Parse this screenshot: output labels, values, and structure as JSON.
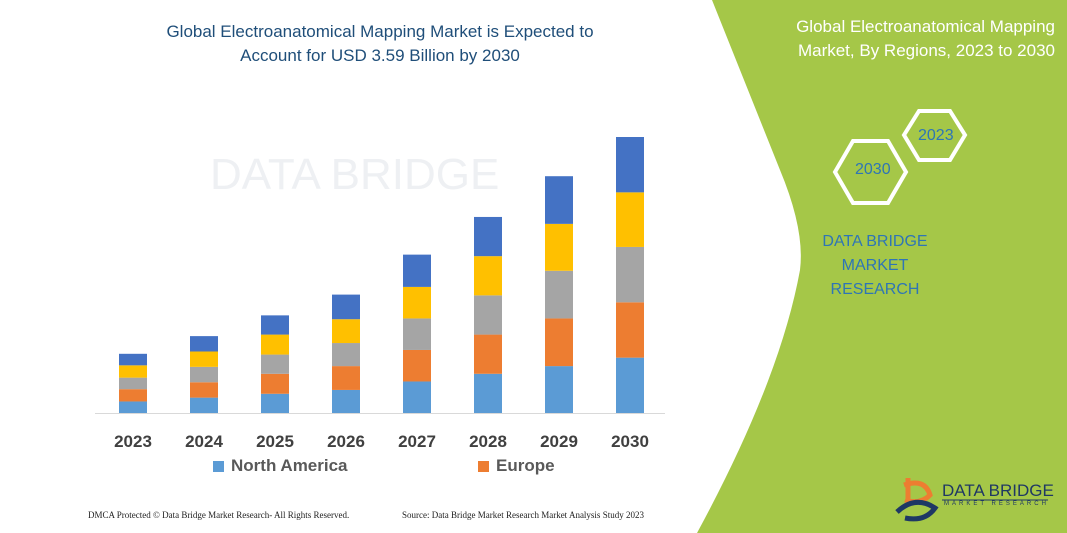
{
  "chart_data": {
    "type": "bar",
    "stacked": true,
    "title": "Global Electroanatomical Mapping Market is Expected to Account for USD 3.59 Billion by 2030",
    "categories": [
      "2023",
      "2024",
      "2025",
      "2026",
      "2027",
      "2028",
      "2029",
      "2030"
    ],
    "series": [
      {
        "name": "North America",
        "color": "#5B9BD5",
        "values": [
          0.15,
          0.2,
          0.25,
          0.3,
          0.41,
          0.51,
          0.61,
          0.72
        ]
      },
      {
        "name": "Europe",
        "color": "#ED7D31",
        "values": [
          0.16,
          0.2,
          0.26,
          0.31,
          0.41,
          0.51,
          0.62,
          0.72
        ]
      },
      {
        "color": "#A5A5A5",
        "values": [
          0.15,
          0.2,
          0.25,
          0.3,
          0.41,
          0.51,
          0.62,
          0.72
        ]
      },
      {
        "color": "#FFC000",
        "values": [
          0.16,
          0.2,
          0.26,
          0.31,
          0.41,
          0.51,
          0.61,
          0.71
        ]
      },
      {
        "color": "#4472C4",
        "values": [
          0.15,
          0.2,
          0.25,
          0.32,
          0.42,
          0.51,
          0.62,
          0.72
        ]
      }
    ],
    "ylim": [
      0,
      3.59
    ],
    "grid": false,
    "legend": "bottom"
  },
  "title_line1": "Global Electroanatomical Mapping Market is Expected to",
  "title_line2": "Account for USD 3.59 Billion by 2030",
  "legend": [
    "North America",
    "Europe"
  ],
  "footer_left": "DMCA Protected © Data Bridge Market Research-  All Rights Reserved.",
  "footer_right": "Source: Data Bridge Market Research  Market Analysis Study 2023",
  "panel": {
    "color": "#A5C748",
    "title_line1": "Global Electroanatomical Mapping",
    "title_line2": "Market, By Regions, 2023 to 2030",
    "hex_2023": "2023",
    "hex_2030": "2030",
    "brand_line1": "DATA BRIDGE MARKET",
    "brand_line2": "RESEARCH",
    "logo_name": "DATA BRIDGE",
    "logo_sub": "MARKET RESEARCH",
    "watermark": "DATA BRIDGE"
  }
}
